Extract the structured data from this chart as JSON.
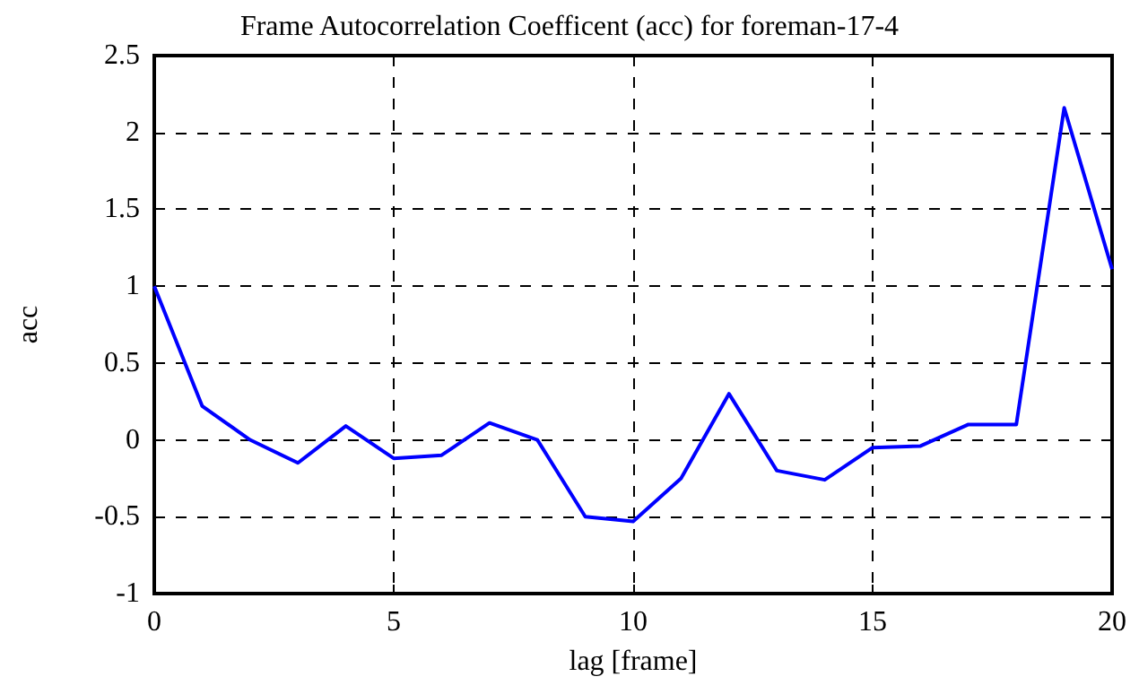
{
  "chart_data": {
    "type": "line",
    "title": "Frame Autocorrelation Coefficent (acc) for foreman-17-4",
    "xlabel": "lag [frame]",
    "ylabel": "acc",
    "x": [
      0,
      1,
      2,
      3,
      4,
      5,
      6,
      7,
      8,
      9,
      10,
      11,
      12,
      13,
      14,
      15,
      16,
      17,
      18,
      19,
      20
    ],
    "series": [
      {
        "color": "#0000ff",
        "values": [
          1,
          0.22,
          0,
          -0.15,
          0.09,
          -0.12,
          -0.1,
          0.11,
          0,
          -0.5,
          -0.53,
          -0.25,
          0.3,
          -0.2,
          -0.26,
          -0.05,
          -0.04,
          0.1,
          0.1,
          2.16,
          1.11
        ]
      }
    ],
    "xlim": [
      0,
      20
    ],
    "xticks": [
      0,
      5,
      10,
      15,
      20
    ],
    "ylim": [
      -1,
      2.5
    ],
    "yticks": [
      -1,
      -0.5,
      0,
      0.5,
      1,
      1.5,
      2,
      2.5
    ],
    "grid": true,
    "line_style": "solid",
    "marker": "none"
  }
}
